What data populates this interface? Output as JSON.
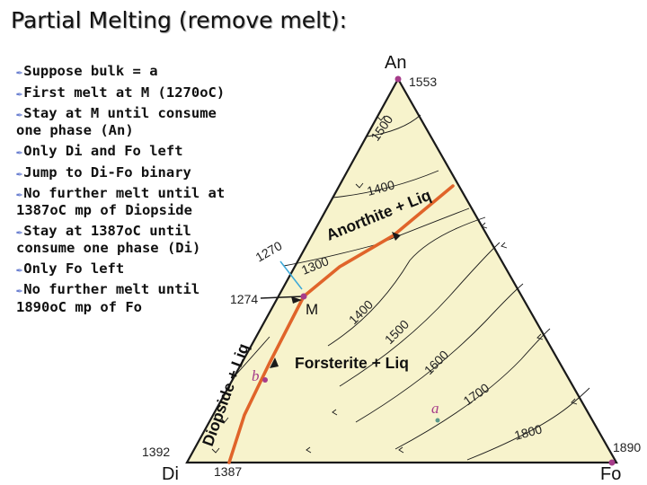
{
  "title": "Partial Melting (remove melt):",
  "bullets": [
    "Suppose bulk = a",
    "First melt at M (1270oC)",
    "Stay at M until consume one phase (An)",
    "Only Di and Fo left",
    "Jump to Di-Fo binary",
    "No further melt until at 1387oC mp of Diopside",
    "Stay at 1387oC until consume one phase (Di)",
    "Only Fo left",
    "No further melt until 1890oC mp of Fo"
  ],
  "diagram": {
    "apices": {
      "an": "An",
      "di": "Di",
      "fo": "Fo"
    },
    "apex_temps": {
      "an": "1553",
      "di": "1392",
      "fo": "1890"
    },
    "edge_temps": {
      "di_fo_eutectic": "1387",
      "an_di_1274": "1274",
      "an_di_1270": "1270"
    },
    "isotherms": [
      "1500",
      "1400",
      "1300",
      "1400",
      "1500",
      "1600",
      "1700",
      "1800"
    ],
    "fields": {
      "anorthite": "Anorthite + Liq",
      "forsterite": "Forsterite + Liq",
      "diopside": "Diopside + Liq"
    },
    "points": {
      "m": "M",
      "a": "a",
      "b": "b"
    },
    "colors": {
      "fill": "#f7f3cc",
      "path": "#e0642a",
      "point": "#a63c8a",
      "line": "#1a1a1a",
      "tie": "#3aa8d8"
    }
  }
}
